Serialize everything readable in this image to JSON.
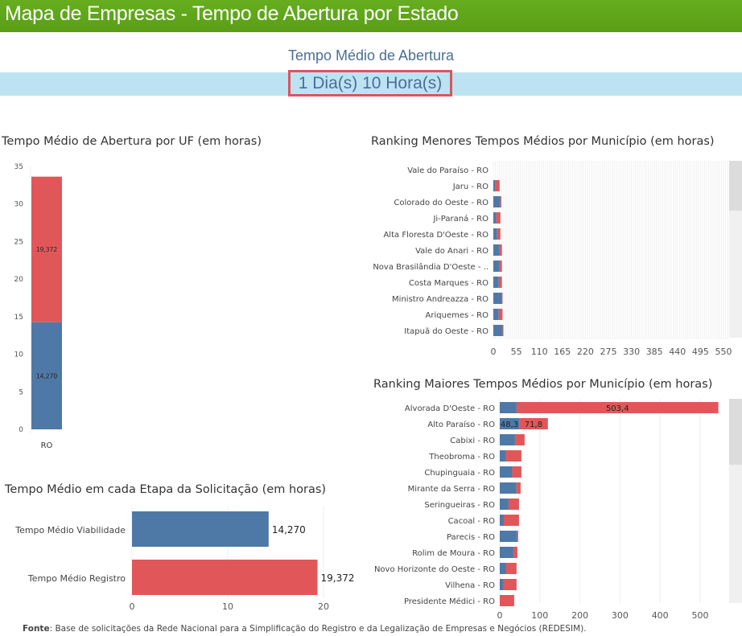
{
  "header": {
    "title": "Mapa de Empresas - Tempo de Abertura por Estado"
  },
  "kpi": {
    "title": "Tempo Médio de Abertura",
    "value": "1 Dia(s) 10 Hora(s)"
  },
  "colors": {
    "viabilidade": "#4e79a7",
    "registro": "#e15759",
    "header": "#5fa31a",
    "kpi_band": "#bde3f2"
  },
  "footer": {
    "label": "Fonte",
    "text": ": Base de solicitações da Rede Nacional para a Simplificação do Registro e da Legalização de Empresas e Negócios (REDESIM)."
  },
  "chart_data": [
    {
      "id": "uf",
      "type": "bar",
      "stacked": true,
      "title": "Tempo Médio de Abertura por UF (em horas)",
      "categories": [
        "RO"
      ],
      "series": [
        {
          "values": [
            14.27
          ],
          "labels": [
            "14,270"
          ]
        },
        {
          "values": [
            19.372
          ],
          "labels": [
            "19,372"
          ]
        }
      ],
      "ylim": [
        0,
        35
      ],
      "yticks": [
        0,
        5,
        10,
        15,
        20,
        25,
        30,
        35
      ]
    },
    {
      "id": "etapa",
      "type": "bar",
      "orientation": "horizontal",
      "title": "Tempo Médio em cada Etapa da Solicitação (em horas)",
      "categories": [
        "Tempo Médio Viabilidade",
        "Tempo Médio Registro"
      ],
      "values": [
        14.27,
        19.372
      ],
      "labels": [
        "14,270",
        "19,372"
      ],
      "xlim": [
        0,
        24
      ],
      "xticks": [
        0,
        10,
        20
      ]
    },
    {
      "id": "menores",
      "type": "bar",
      "orientation": "horizontal",
      "stacked": true,
      "title": "Ranking Menores Tempos Médios por Município (em horas)",
      "categories": [
        "Vale do Paraíso - RO",
        "Jaru - RO",
        "Colorado do Oeste - RO",
        "Ji-Paraná - RO",
        "Alta Floresta D'Oeste - RO",
        "Vale do Anari - RO",
        "Nova Brasilândia D'Oeste - ..",
        "Costa Marques - RO",
        "Ministro Andreazza - RO",
        "Ariquemes - RO",
        "Itapuã do Oeste - RO"
      ],
      "series": [
        {
          "values": [
            0,
            4,
            17,
            7,
            9,
            15,
            15,
            13,
            21,
            13,
            22
          ]
        },
        {
          "values": [
            0,
            11,
            2,
            10,
            8,
            5.5,
            5.5,
            7.5,
            1,
            9,
            2
          ]
        }
      ],
      "xlim": [
        0,
        560
      ],
      "xticks": [
        0,
        55,
        110,
        165,
        220,
        275,
        330,
        385,
        440,
        495,
        550
      ]
    },
    {
      "id": "maiores",
      "type": "bar",
      "orientation": "horizontal",
      "stacked": true,
      "title": "Ranking Maiores Tempos Médios por Município (em horas)",
      "categories": [
        "Alvorada D'Oeste - RO",
        "Alto Paraíso - RO",
        "Cabixi - RO",
        "Theobroma - RO",
        "Chupinguaia - RO",
        "Mirante da Serra - RO",
        "Seringueiras - RO",
        "Cacoal - RO",
        "Parecis - RO",
        "Rolim de Moura - RO",
        "Novo Horizonte do Oeste - RO",
        "Vilhena - RO",
        "Presidente Médici - RO"
      ],
      "series": [
        {
          "values": [
            42,
            48.3,
            38,
            15,
            31,
            41.5,
            22,
            10,
            43.5,
            34,
            16,
            8,
            0
          ],
          "labels": {
            "1": "48,3"
          }
        },
        {
          "values": [
            503.4,
            71.8,
            24,
            39,
            23,
            10.5,
            26,
            38,
            2.5,
            10,
            26,
            34,
            36
          ],
          "labels": {
            "0": "503,4",
            "1": "71,8"
          }
        }
      ],
      "xlim": [
        0,
        570
      ],
      "xticks": [
        0,
        100,
        200,
        300,
        400,
        500
      ]
    }
  ]
}
